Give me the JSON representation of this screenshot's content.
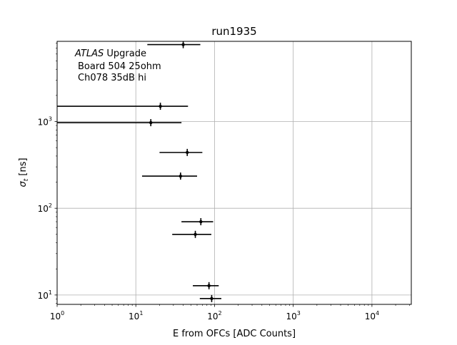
{
  "chart_data": {
    "type": "scatter",
    "title": "run1935",
    "xlabel": "E from OFCs [ADC Counts]",
    "ylabel_symbol": "σ",
    "ylabel_sub": "t",
    "ylabel_unit": " [ns]",
    "xscale": "log",
    "yscale": "log",
    "xlim": [
      1,
      31623
    ],
    "ylim": [
      7.8,
      8400
    ],
    "grid": true,
    "x_ticks": [
      {
        "value": 1,
        "base": "10",
        "exp": "0"
      },
      {
        "value": 10,
        "base": "10",
        "exp": "1"
      },
      {
        "value": 100,
        "base": "10",
        "exp": "2"
      },
      {
        "value": 1000,
        "base": "10",
        "exp": "3"
      },
      {
        "value": 10000,
        "base": "10",
        "exp": "4"
      }
    ],
    "y_ticks": [
      {
        "value": 10,
        "base": "10",
        "exp": "1"
      },
      {
        "value": 100,
        "base": "10",
        "exp": "2"
      },
      {
        "value": 1000,
        "base": "10",
        "exp": "3"
      }
    ],
    "annotation": {
      "italic": "ATLAS",
      "line1_rest": " Upgrade",
      "line2": "Board 504 25ohm",
      "line3": "Ch078 35dB hi"
    },
    "points": [
      {
        "x": 40,
        "y": 7700,
        "xerr_low": 14,
        "xerr_high": 66
      },
      {
        "x": 20.5,
        "y": 1500,
        "xerr_low": 1,
        "xerr_high": 46
      },
      {
        "x": 15.5,
        "y": 970,
        "xerr_low": 1,
        "xerr_high": 38
      },
      {
        "x": 45,
        "y": 440,
        "xerr_low": 20,
        "xerr_high": 70
      },
      {
        "x": 37,
        "y": 235,
        "xerr_low": 12,
        "xerr_high": 60
      },
      {
        "x": 67,
        "y": 70,
        "xerr_low": 38,
        "xerr_high": 96
      },
      {
        "x": 57,
        "y": 50,
        "xerr_low": 29,
        "xerr_high": 91
      },
      {
        "x": 85,
        "y": 12.8,
        "xerr_low": 53,
        "xerr_high": 113
      },
      {
        "x": 92,
        "y": 9.1,
        "xerr_low": 65,
        "xerr_high": 122
      }
    ]
  }
}
